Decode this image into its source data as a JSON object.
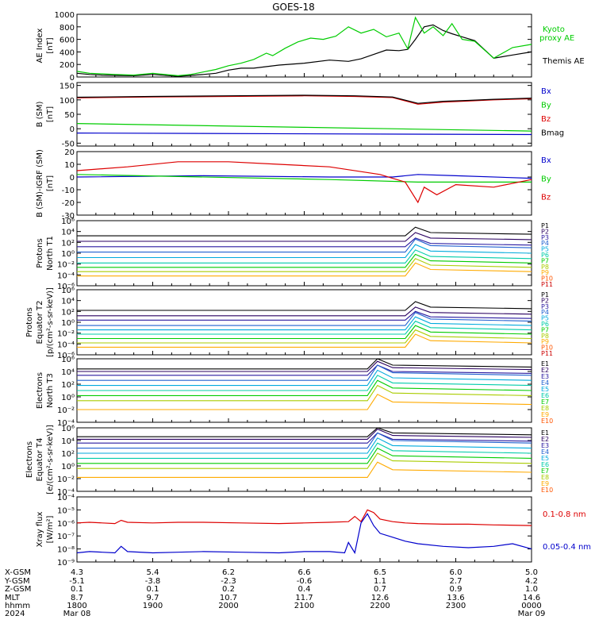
{
  "title": "GOES-18",
  "colors": {
    "black": "#000000",
    "red": "#dd0000",
    "green": "#00cc00",
    "blue": "#0000cc",
    "p1": "#000000",
    "p2": "#2a0060",
    "p3": "#2a1aa0",
    "p4": "#2060d0",
    "p5": "#00aadd",
    "p6": "#00ccaa",
    "p7": "#00cc00",
    "p8": "#aacc00",
    "p9": "#ffaa00",
    "p10": "#ff5500",
    "p11": "#cc0000"
  },
  "chart_data": [
    {
      "type": "line",
      "panel": "ae",
      "ylabel": [
        "AE Index",
        "[nT]"
      ],
      "ylim": [
        0,
        1000
      ],
      "yticks": [
        {
          "v": 0,
          "t": "0"
        },
        {
          "v": 200,
          "t": "200"
        },
        {
          "v": 400,
          "t": "400"
        },
        {
          "v": 600,
          "t": "600"
        },
        {
          "v": 800,
          "t": "800"
        },
        {
          "v": 1000,
          "t": "1000"
        }
      ],
      "series": [
        {
          "name": "Themis AE",
          "color": "green_black",
          "x": [
            0,
            10,
            20,
            30,
            45,
            60,
            80,
            90,
            100,
            110,
            120,
            130,
            140,
            160,
            180,
            200,
            215,
            225,
            235,
            245,
            255,
            262,
            268,
            275,
            282,
            290,
            297,
            305,
            315,
            330,
            345,
            360
          ],
          "y": [
            60,
            40,
            30,
            25,
            20,
            40,
            10,
            25,
            40,
            60,
            110,
            140,
            140,
            190,
            220,
            270,
            250,
            290,
            360,
            430,
            420,
            440,
            600,
            800,
            830,
            740,
            690,
            640,
            580,
            300,
            350,
            400
          ]
        },
        {
          "name": "Kyoto proxy AE",
          "color": "green",
          "x": [
            0,
            10,
            20,
            30,
            45,
            60,
            80,
            90,
            100,
            110,
            120,
            130,
            140,
            150,
            155,
            165,
            175,
            185,
            195,
            205,
            215,
            225,
            235,
            245,
            255,
            262,
            268,
            275,
            282,
            290,
            297,
            305,
            315,
            330,
            345,
            360
          ],
          "y": [
            90,
            60,
            50,
            40,
            30,
            60,
            20,
            40,
            80,
            120,
            180,
            220,
            280,
            380,
            340,
            460,
            560,
            620,
            600,
            650,
            800,
            700,
            760,
            640,
            700,
            450,
            950,
            700,
            800,
            660,
            850,
            600,
            570,
            300,
            470,
            520
          ]
        }
      ]
    },
    {
      "type": "line",
      "panel": "b_sm",
      "ylabel": [
        "B (SM)",
        "[nT]"
      ],
      "ylim": [
        -60,
        160
      ],
      "yticks": [
        {
          "v": -50,
          "t": "-50"
        },
        {
          "v": 0,
          "t": "0"
        },
        {
          "v": 50,
          "t": "50"
        },
        {
          "v": 100,
          "t": "100"
        },
        {
          "v": 150,
          "t": "150"
        }
      ],
      "legend": [
        "Bx",
        "By",
        "Bz",
        "Bmag"
      ],
      "series": [
        {
          "name": "Bx",
          "color": "blue",
          "x": [
            0,
            360
          ],
          "y": [
            -15,
            -20
          ]
        },
        {
          "name": "By",
          "color": "green",
          "x": [
            0,
            180,
            360
          ],
          "y": [
            18,
            5,
            -8
          ]
        },
        {
          "name": "Bz",
          "color": "red",
          "x": [
            0,
            60,
            120,
            180,
            220,
            250,
            270,
            290,
            310,
            330,
            360
          ],
          "y": [
            107,
            110,
            112,
            114,
            112,
            108,
            85,
            92,
            96,
            100,
            104
          ]
        },
        {
          "name": "Bmag",
          "color": "black",
          "x": [
            0,
            60,
            120,
            180,
            220,
            250,
            270,
            290,
            310,
            330,
            360
          ],
          "y": [
            109,
            112,
            114,
            116,
            114,
            110,
            88,
            95,
            98,
            102,
            106
          ]
        }
      ]
    },
    {
      "type": "line",
      "panel": "b_igrf",
      "ylabel": [
        "B (SM)-IGRF (SM)",
        "[nT]"
      ],
      "ylim": [
        -30,
        20
      ],
      "yticks": [
        {
          "v": -30,
          "t": "-30"
        },
        {
          "v": -20,
          "t": "-20"
        },
        {
          "v": -10,
          "t": "-10"
        },
        {
          "v": 0,
          "t": "0"
        },
        {
          "v": 10,
          "t": "10"
        },
        {
          "v": 20,
          "t": "20"
        }
      ],
      "legend": [
        "Bx",
        "By",
        "Bz"
      ],
      "series": [
        {
          "name": "Bx",
          "color": "blue",
          "x": [
            0,
            100,
            200,
            250,
            270,
            300,
            360
          ],
          "y": [
            0,
            1,
            0,
            0,
            2,
            1,
            -1
          ]
        },
        {
          "name": "By",
          "color": "green",
          "x": [
            0,
            200,
            270,
            360
          ],
          "y": [
            2,
            -2,
            -4,
            -4
          ]
        },
        {
          "name": "Bz",
          "color": "red",
          "x": [
            0,
            40,
            80,
            120,
            160,
            200,
            240,
            260,
            270,
            275,
            285,
            300,
            330,
            360
          ],
          "y": [
            5,
            8,
            12,
            12,
            10,
            8,
            2,
            -4,
            -20,
            -8,
            -14,
            -6,
            -8,
            -2
          ]
        }
      ]
    },
    {
      "type": "line",
      "panel": "protons_t1",
      "ylabel": [
        "Protons",
        "North T1"
      ],
      "log": true,
      "ylim": [
        -6,
        6
      ],
      "yticks": [
        {
          "v": -6,
          "t": "10⁻⁶"
        },
        {
          "v": -4,
          "t": "10⁻⁴"
        },
        {
          "v": -2,
          "t": "10⁻²"
        },
        {
          "v": 0,
          "t": "10⁰"
        },
        {
          "v": 2,
          "t": "10²"
        },
        {
          "v": 4,
          "t": "10⁴"
        },
        {
          "v": 6,
          "t": "10⁶"
        }
      ],
      "legend": [
        "P1",
        "P2",
        "P3",
        "P4",
        "P5",
        "P6",
        "P7",
        "P8",
        "P9",
        "P10",
        "P11"
      ],
      "levels": [
        3.2,
        2.2,
        1.2,
        0.2,
        -0.8,
        -1.8,
        -2.6,
        -3.4,
        -4.2
      ],
      "event_x": 260
    },
    {
      "type": "line",
      "panel": "protons_t2",
      "ylabel": [
        "Protons",
        "Equator T2",
        "[p/(cm²-s-sr-keV)]"
      ],
      "log": true,
      "ylim": [
        -6,
        6
      ],
      "yticks": [
        {
          "v": -6,
          "t": "10⁻⁶"
        },
        {
          "v": -4,
          "t": "10⁻⁴"
        },
        {
          "v": -2,
          "t": "10⁻²"
        },
        {
          "v": 0,
          "t": "10⁰"
        },
        {
          "v": 2,
          "t": "10²"
        },
        {
          "v": 4,
          "t": "10⁴"
        },
        {
          "v": 6,
          "t": "10⁶"
        }
      ],
      "legend": [
        "P1",
        "P2",
        "P3",
        "P4",
        "P5",
        "P6",
        "P7",
        "P8",
        "P9",
        "P10",
        "P11"
      ],
      "levels": [
        2.2,
        1.2,
        0.4,
        -0.6,
        -1.4,
        -2.2,
        -3.0,
        -3.8,
        -4.6
      ],
      "event_x": 260
    },
    {
      "type": "line",
      "panel": "electrons_t3",
      "ylabel": [
        "Electrons",
        "North T3"
      ],
      "log": true,
      "ylim": [
        -4,
        6
      ],
      "yticks": [
        {
          "v": -4,
          "t": "10⁻⁴"
        },
        {
          "v": -2,
          "t": "10⁻²"
        },
        {
          "v": 0,
          "t": "10⁰"
        },
        {
          "v": 2,
          "t": "10²"
        },
        {
          "v": 4,
          "t": "10⁴"
        },
        {
          "v": 6,
          "t": "10⁶"
        }
      ],
      "legend": [
        "E1",
        "E2",
        "E3",
        "E4",
        "E5",
        "E6",
        "E7",
        "E8",
        "E9",
        "E10"
      ],
      "levels": [
        4.4,
        4.0,
        3.4,
        2.6,
        1.8,
        1.0,
        0.2,
        -0.6,
        -2.0
      ],
      "event_x": 230
    },
    {
      "type": "line",
      "panel": "electrons_t4",
      "ylabel": [
        "Electrons",
        "Equator T4",
        "[e/(cm²-s-sr-keV)]"
      ],
      "log": true,
      "ylim": [
        -4,
        6
      ],
      "yticks": [
        {
          "v": -4,
          "t": "10⁻⁴"
        },
        {
          "v": -2,
          "t": "10⁻²"
        },
        {
          "v": 0,
          "t": "10⁰"
        },
        {
          "v": 2,
          "t": "10²"
        },
        {
          "v": 4,
          "t": "10⁴"
        },
        {
          "v": 6,
          "t": "10⁶"
        }
      ],
      "legend": [
        "E1",
        "E2",
        "E3",
        "E4",
        "E5",
        "E6",
        "E7",
        "E8",
        "E9",
        "E10"
      ],
      "levels": [
        4.6,
        4.2,
        3.6,
        2.8,
        2.0,
        1.2,
        0.4,
        -0.4,
        -1.8
      ],
      "event_x": 230
    },
    {
      "type": "line",
      "panel": "xray",
      "ylabel": [
        "Xray flux",
        "[W/m²]"
      ],
      "log": true,
      "ylim": [
        -9,
        -4
      ],
      "yticks": [
        {
          "v": -9,
          "t": "10⁻⁹"
        },
        {
          "v": -8,
          "t": "10⁻⁸"
        },
        {
          "v": -7,
          "t": "10⁻⁷"
        },
        {
          "v": -6,
          "t": "10⁻⁶"
        },
        {
          "v": -5,
          "t": "10⁻⁵"
        },
        {
          "v": -4,
          "t": "10⁻⁴"
        }
      ],
      "series": [
        {
          "name": "0.1-0.8 nm",
          "color": "red",
          "x": [
            0,
            10,
            20,
            30,
            35,
            40,
            60,
            80,
            100,
            130,
            160,
            180,
            200,
            215,
            220,
            225,
            230,
            235,
            240,
            250,
            260,
            270,
            290,
            310,
            330,
            360
          ],
          "y": [
            -6.0,
            -5.95,
            -6.0,
            -6.05,
            -5.8,
            -5.95,
            -6.0,
            -5.95,
            -5.95,
            -6.0,
            -6.05,
            -6.0,
            -5.95,
            -5.9,
            -5.5,
            -5.9,
            -5.0,
            -5.2,
            -5.7,
            -5.9,
            -6.0,
            -6.05,
            -6.1,
            -6.1,
            -6.15,
            -6.2
          ]
        },
        {
          "name": "0.05-0.4 nm",
          "color": "blue",
          "x": [
            0,
            10,
            20,
            30,
            35,
            40,
            60,
            80,
            100,
            130,
            160,
            180,
            200,
            212,
            215,
            220,
            225,
            230,
            235,
            240,
            250,
            260,
            270,
            290,
            310,
            330,
            345,
            360
          ],
          "y": [
            -8.3,
            -8.2,
            -8.25,
            -8.3,
            -7.8,
            -8.2,
            -8.3,
            -8.25,
            -8.2,
            -8.25,
            -8.3,
            -8.2,
            -8.2,
            -8.3,
            -7.5,
            -8.3,
            -6.0,
            -5.3,
            -6.2,
            -6.8,
            -7.1,
            -7.4,
            -7.6,
            -7.8,
            -7.9,
            -7.8,
            -7.6,
            -8.0
          ]
        }
      ]
    }
  ],
  "xaxis": {
    "labels": [
      "X-GSM",
      "Y-GSM",
      "Z-GSM",
      "MLT",
      "hhmm",
      "2024"
    ],
    "columns": [
      {
        "x": 0,
        "vals": [
          "4.3",
          "-5.1",
          "0.1",
          "8.7",
          "1800",
          "Mar 08"
        ]
      },
      {
        "x": 60,
        "vals": [
          "5.4",
          "-3.8",
          "0.1",
          "9.7",
          "1900",
          ""
        ]
      },
      {
        "x": 120,
        "vals": [
          "6.2",
          "-2.3",
          "0.2",
          "10.7",
          "2000",
          ""
        ]
      },
      {
        "x": 180,
        "vals": [
          "6.6",
          "-0.6",
          "0.4",
          "11.7",
          "2100",
          ""
        ]
      },
      {
        "x": 240,
        "vals": [
          "6.5",
          "1.1",
          "0.7",
          "12.6",
          "2200",
          ""
        ]
      },
      {
        "x": 300,
        "vals": [
          "6.0",
          "2.7",
          "0.9",
          "13.6",
          "2300",
          ""
        ]
      },
      {
        "x": 360,
        "vals": [
          "5.0",
          "4.2",
          "1.0",
          "14.6",
          "0000",
          "Mar 09"
        ]
      }
    ]
  },
  "legends": {
    "ae": [
      {
        "text": "Kyoto",
        "color": "#00cc00"
      },
      {
        "text": "proxy AE",
        "color": "#00cc00"
      },
      {
        "text": "Themis AE",
        "color": "#000000"
      }
    ],
    "xray": [
      {
        "text": "0.1-0.8 nm",
        "color": "#dd0000"
      },
      {
        "text": "0.05-0.4 nm",
        "color": "#0000cc"
      }
    ]
  }
}
